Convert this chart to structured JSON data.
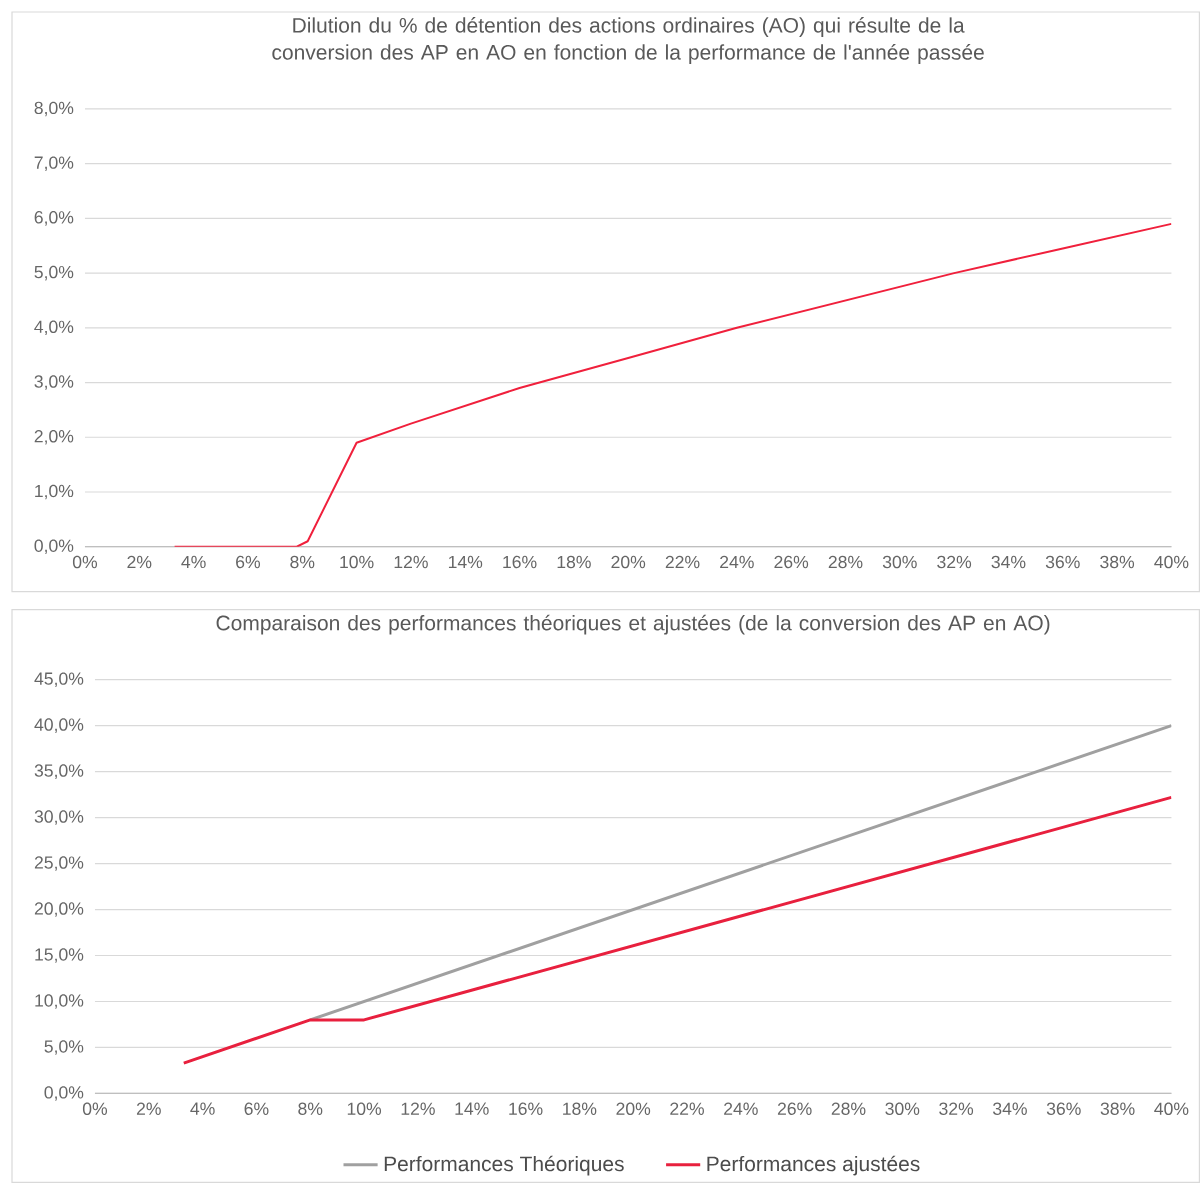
{
  "chart_data": [
    {
      "type": "line",
      "title": "Dilution du % de détention des actions ordinaires (AO) qui résulte de la conversion des AP en AO en fonction de la performance de l'année passée",
      "x": [
        3.3,
        7.8,
        8.2,
        10,
        12,
        16,
        20,
        24,
        28,
        32,
        36,
        40
      ],
      "values": [
        0,
        0,
        0.1,
        1.9,
        2.25,
        2.9,
        3.45,
        4.0,
        4.5,
        5.0,
        5.45,
        5.9
      ],
      "color": "#f0203c",
      "xlim": [
        0,
        40
      ],
      "xticks": [
        {
          "value": 0,
          "label": "0%"
        },
        {
          "value": 2,
          "label": "2%"
        },
        {
          "value": 4,
          "label": "4%"
        },
        {
          "value": 6,
          "label": "6%"
        },
        {
          "value": 8,
          "label": "8%"
        },
        {
          "value": 10,
          "label": "10%"
        },
        {
          "value": 12,
          "label": "12%"
        },
        {
          "value": 14,
          "label": "14%"
        },
        {
          "value": 16,
          "label": "16%"
        },
        {
          "value": 18,
          "label": "18%"
        },
        {
          "value": 20,
          "label": "20%"
        },
        {
          "value": 22,
          "label": "22%"
        },
        {
          "value": 24,
          "label": "24%"
        },
        {
          "value": 26,
          "label": "26%"
        },
        {
          "value": 28,
          "label": "28%"
        },
        {
          "value": 30,
          "label": "30%"
        },
        {
          "value": 32,
          "label": "32%"
        },
        {
          "value": 34,
          "label": "34%"
        },
        {
          "value": 36,
          "label": "36%"
        },
        {
          "value": 38,
          "label": "38%"
        },
        {
          "value": 40,
          "label": "40%"
        }
      ],
      "ylim": [
        0,
        8
      ],
      "yticks": [
        {
          "value": 0,
          "label": "0,0%"
        },
        {
          "value": 1,
          "label": "1,0%"
        },
        {
          "value": 2,
          "label": "2,0%"
        },
        {
          "value": 3,
          "label": "3,0%"
        },
        {
          "value": 4,
          "label": "4,0%"
        },
        {
          "value": 5,
          "label": "5,0%"
        },
        {
          "value": 6,
          "label": "6,0%"
        },
        {
          "value": 7,
          "label": "7,0%"
        },
        {
          "value": 8,
          "label": "8,0%"
        }
      ],
      "grid": "y"
    },
    {
      "type": "line",
      "title": "Comparaison des performances théoriques et ajustées (de la conversion des AP en AO)",
      "series": [
        {
          "name": "Performances Théoriques",
          "color": "#a0a0a0",
          "x": [
            8,
            40
          ],
          "values": [
            8,
            40
          ]
        },
        {
          "name": "Performances ajustées",
          "color": "#e8203e",
          "x": [
            3.3,
            8,
            10,
            40
          ],
          "values": [
            3.3,
            8,
            8,
            32.2
          ]
        }
      ],
      "xlim": [
        0,
        40
      ],
      "xticks": [
        {
          "value": 0,
          "label": "0%"
        },
        {
          "value": 2,
          "label": "2%"
        },
        {
          "value": 4,
          "label": "4%"
        },
        {
          "value": 6,
          "label": "6%"
        },
        {
          "value": 8,
          "label": "8%"
        },
        {
          "value": 10,
          "label": "10%"
        },
        {
          "value": 12,
          "label": "12%"
        },
        {
          "value": 14,
          "label": "14%"
        },
        {
          "value": 16,
          "label": "16%"
        },
        {
          "value": 18,
          "label": "18%"
        },
        {
          "value": 20,
          "label": "20%"
        },
        {
          "value": 22,
          "label": "22%"
        },
        {
          "value": 24,
          "label": "24%"
        },
        {
          "value": 26,
          "label": "26%"
        },
        {
          "value": 28,
          "label": "28%"
        },
        {
          "value": 30,
          "label": "30%"
        },
        {
          "value": 32,
          "label": "32%"
        },
        {
          "value": 34,
          "label": "34%"
        },
        {
          "value": 36,
          "label": "36%"
        },
        {
          "value": 38,
          "label": "38%"
        },
        {
          "value": 40,
          "label": "40%"
        }
      ],
      "ylim": [
        0,
        45
      ],
      "yticks": [
        {
          "value": 0,
          "label": "0,0%"
        },
        {
          "value": 5,
          "label": "5,0%"
        },
        {
          "value": 10,
          "label": "10,0%"
        },
        {
          "value": 15,
          "label": "15,0%"
        },
        {
          "value": 20,
          "label": "20,0%"
        },
        {
          "value": 25,
          "label": "25,0%"
        },
        {
          "value": 30,
          "label": "30,0%"
        },
        {
          "value": 35,
          "label": "35,0%"
        },
        {
          "value": 40,
          "label": "40,0%"
        },
        {
          "value": 45,
          "label": "45,0%"
        }
      ],
      "grid": "y",
      "legend": "bottom"
    }
  ]
}
